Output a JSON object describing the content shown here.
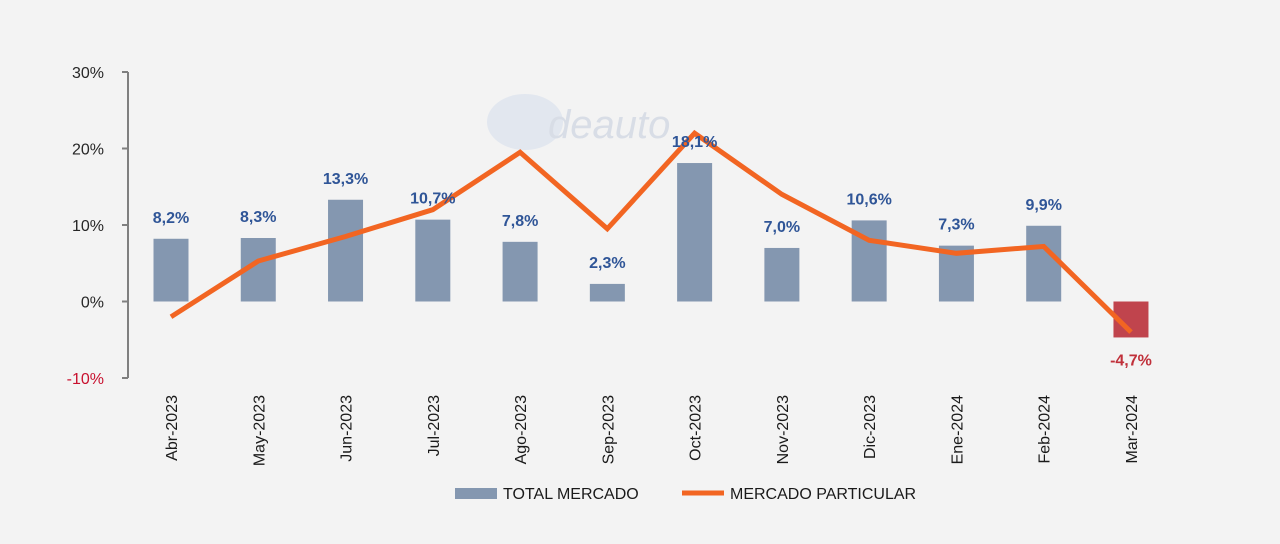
{
  "chart_data": {
    "type": "bar",
    "categories": [
      "Abr-2023",
      "May-2023",
      "Jun-2023",
      "Jul-2023",
      "Ago-2023",
      "Sep-2023",
      "Oct-2023",
      "Nov-2023",
      "Dic-2023",
      "Ene-2024",
      "Feb-2024",
      "Mar-2024"
    ],
    "series": [
      {
        "name": "TOTAL MERCADO",
        "type": "bar",
        "color": "#8497b0",
        "negative_color": "#c0444d",
        "values": [
          8.2,
          8.3,
          13.3,
          10.7,
          7.8,
          2.3,
          18.1,
          7.0,
          10.6,
          7.3,
          9.9,
          -4.7
        ],
        "labels": [
          "8,2%",
          "8,3%",
          "13,3%",
          "10,7%",
          "7,8%",
          "2,3%",
          "18,1%",
          "7,0%",
          "10,6%",
          "7,3%",
          "9,9%",
          "-4,7%"
        ]
      },
      {
        "name": "MERCADO PARTICULAR",
        "type": "line",
        "color": "#f26522",
        "values": [
          -2.0,
          5.3,
          8.5,
          12.0,
          19.5,
          9.5,
          22.0,
          14.0,
          8.0,
          6.3,
          7.2,
          -4.0
        ]
      }
    ],
    "y_ticks": [
      "30%",
      "20%",
      "10%",
      "0%",
      "-10%"
    ],
    "y_tick_values": [
      30,
      20,
      10,
      0,
      -10
    ],
    "ylim": [
      -10,
      30
    ],
    "grid": false,
    "legend_position": "bottom",
    "title": "",
    "xlabel": "",
    "ylabel": ""
  },
  "watermark": {
    "text": "deauto"
  },
  "colors": {
    "axis": "#7f7f7f",
    "bar": "#8497b0",
    "bar_negative": "#c0444d",
    "line": "#f26522",
    "label": "#2f5597",
    "label_negative": "#c0303a",
    "tick_negative": "#c8102e"
  }
}
